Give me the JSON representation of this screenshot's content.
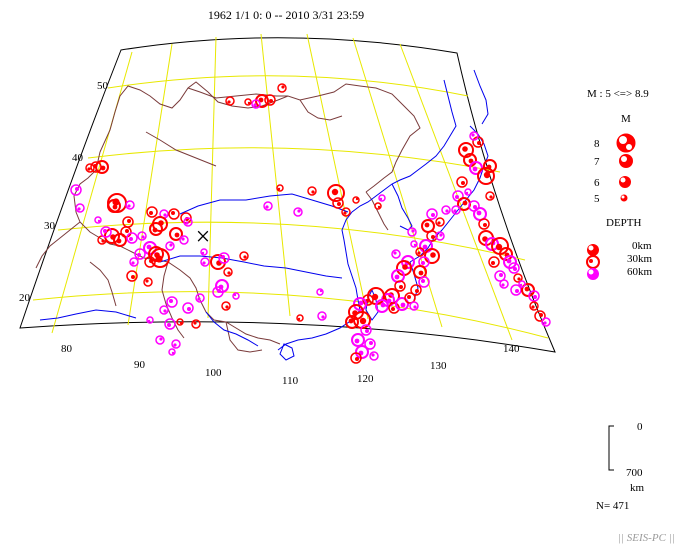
{
  "header": {
    "title": "1962 1/1 0: 0 -- 2010 3/31 23:59"
  },
  "map": {
    "lat_labels": [
      "50",
      "40",
      "30",
      "20"
    ],
    "lon_labels": [
      "80",
      "90",
      "100",
      "110",
      "120",
      "130",
      "140"
    ],
    "grid_color": "#e8e800",
    "border_color": "#7a3b3b",
    "coast_color": "#0000ee",
    "marker_symbol": "×"
  },
  "legend": {
    "magnitude_range": "M : 5 <=> 8.9",
    "magnitude_heading": "M",
    "magnitudes": [
      "8",
      "7",
      "6",
      "5"
    ],
    "depth_heading": "DEPTH",
    "depths": [
      "0km",
      "30km",
      "60km"
    ],
    "depth_colors": [
      "#ff0000",
      "#ff0000",
      "#ff00ff"
    ],
    "scale_top": "0",
    "scale_bottom": "700",
    "scale_unit": "km",
    "count": "N= 471"
  },
  "footer": {
    "credit": "|| SEIS-PC ||"
  }
}
